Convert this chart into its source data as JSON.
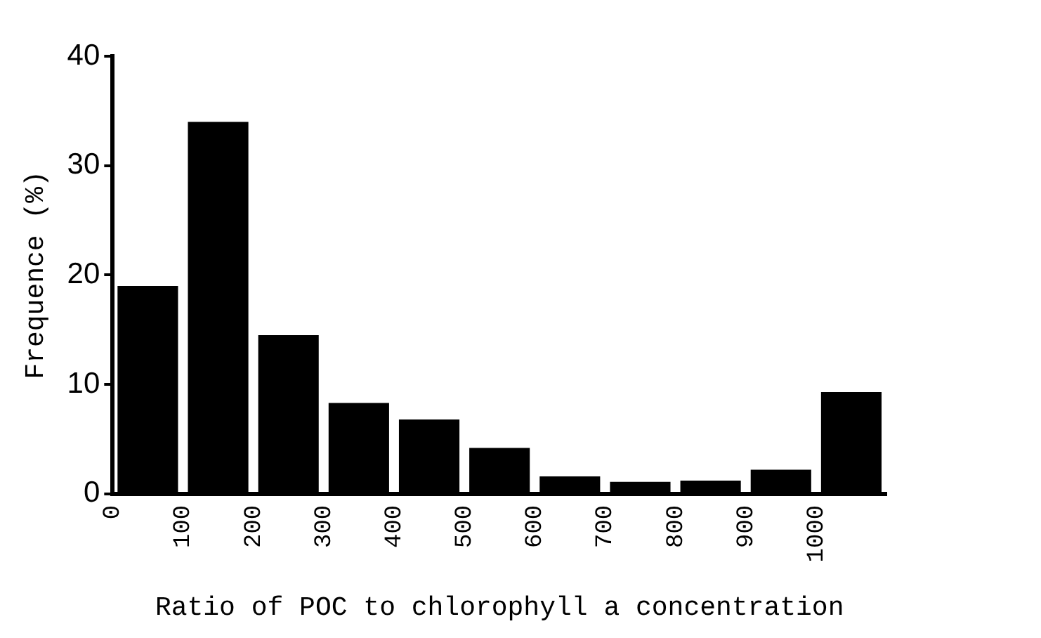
{
  "chart_data": {
    "type": "histogram",
    "xlabel": "Ratio of POC to chlorophyll a concentration",
    "ylabel": "Frequence (%)",
    "bins": [
      0,
      100,
      200,
      300,
      400,
      500,
      600,
      700,
      800,
      900,
      1000,
      1100
    ],
    "values": [
      19,
      34,
      14.5,
      8.3,
      6.8,
      4.2,
      1.6,
      1.1,
      1.2,
      2.2,
      9.3
    ],
    "color": "#000000",
    "xlim": [
      0,
      1100
    ],
    "xticks": [
      0,
      100,
      200,
      300,
      400,
      500,
      600,
      700,
      800,
      900,
      1000
    ],
    "ylim": [
      0,
      40
    ],
    "yticks": [
      0,
      10,
      20,
      30,
      40
    ],
    "grid": false,
    "legend": false
  }
}
